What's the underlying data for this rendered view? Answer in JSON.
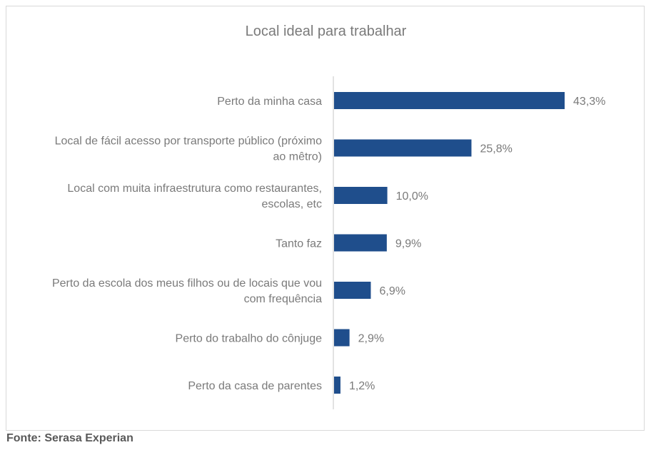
{
  "chart_data": {
    "type": "bar",
    "orientation": "horizontal",
    "title": "Local ideal para trabalhar",
    "categories": [
      [
        "Perto da minha casa"
      ],
      [
        "Local de fácil acesso por transporte público (próximo",
        "ao mêtro)"
      ],
      [
        "Local com muita infraestrutura como restaurantes,",
        "escolas, etc"
      ],
      [
        "Tanto faz"
      ],
      [
        "Perto da escola dos meus filhos ou de locais que vou",
        "com frequência"
      ],
      [
        "Perto do trabalho do cônjuge"
      ],
      [
        "Perto da casa de parentes"
      ]
    ],
    "values": [
      43.3,
      25.8,
      10.0,
      9.9,
      6.9,
      2.9,
      1.2
    ],
    "value_labels": [
      "43,3%",
      "25,8%",
      "10,0%",
      "9,9%",
      "6,9%",
      "2,9%",
      "1,2%"
    ],
    "unit": "%",
    "xlim": [
      0,
      50
    ],
    "grid": false,
    "legend": "none",
    "bar_color": "#1f4e8c",
    "text_color": "#7a7a7a",
    "axis_color": "#d9d9d9"
  },
  "source": "Fonte: Serasa Experian"
}
